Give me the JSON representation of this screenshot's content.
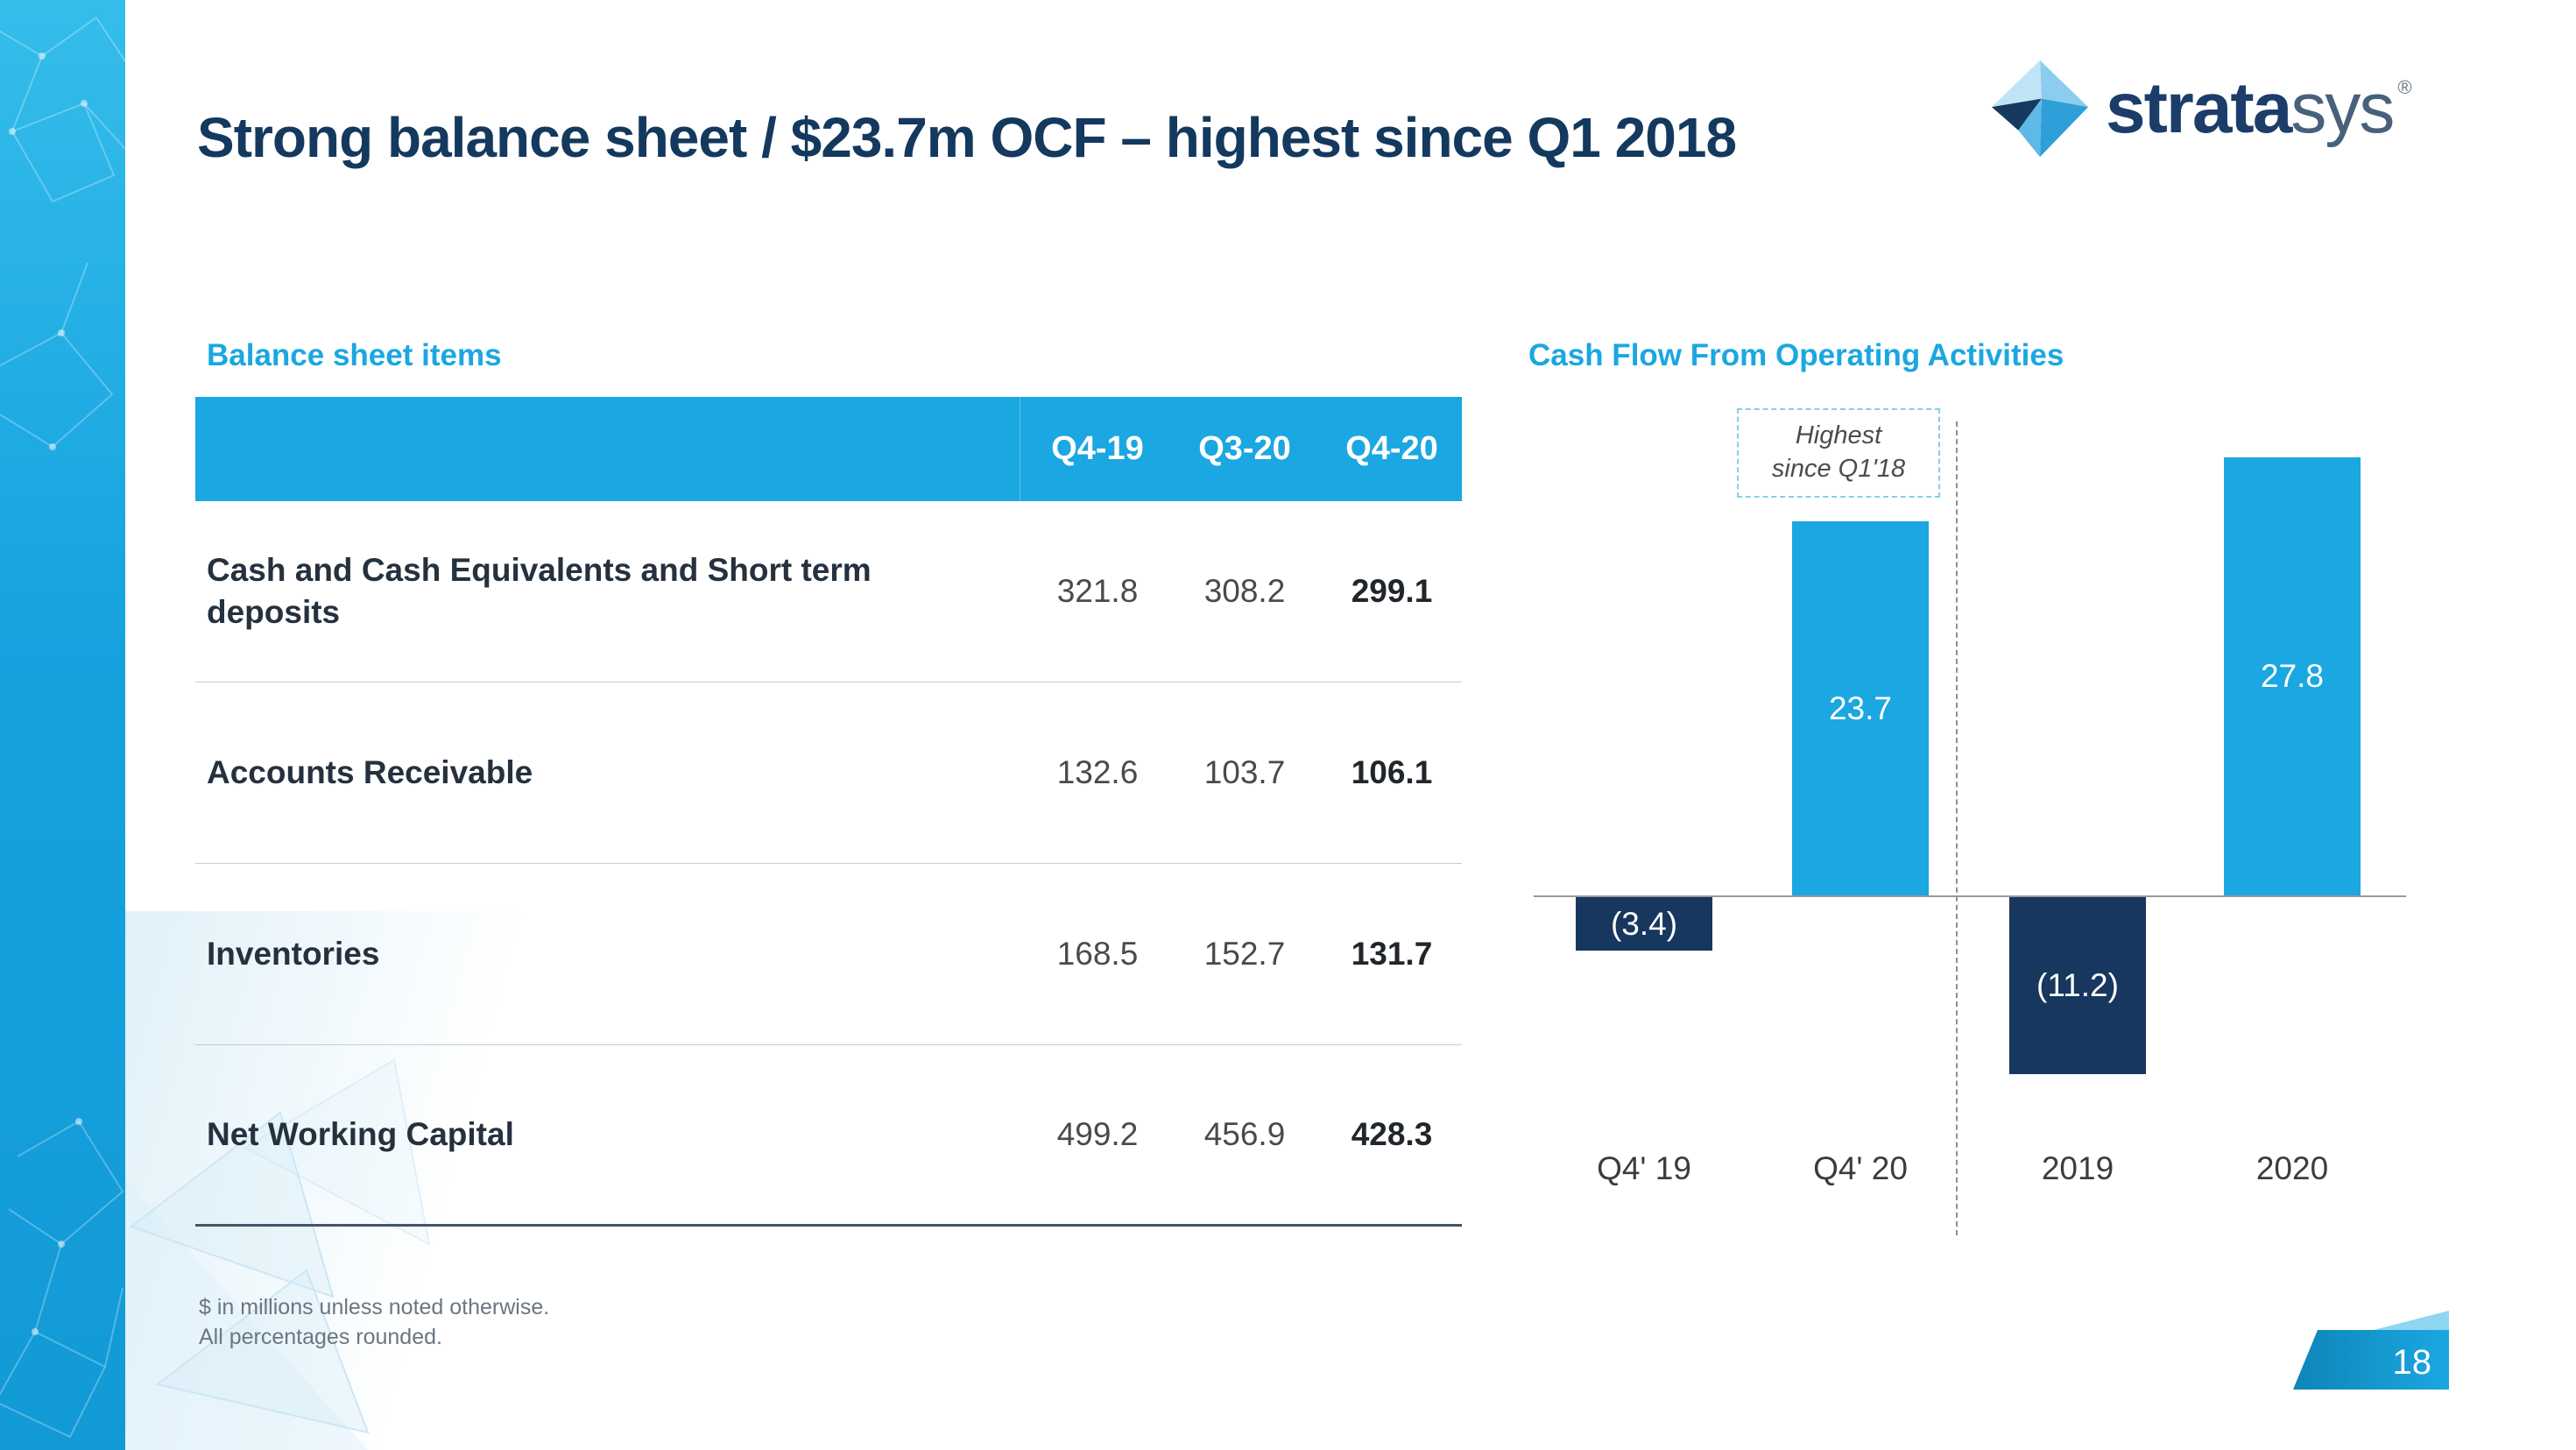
{
  "slide": {
    "title": "Strong balance sheet / $23.7m OCF – highest since Q1 2018",
    "page_number": "18",
    "footnote_line1": "$ in millions unless noted otherwise.",
    "footnote_line2": "All percentages rounded."
  },
  "logo": {
    "brand_bold": "strata",
    "brand_light": "sys",
    "registered_mark": "®"
  },
  "balance_sheet": {
    "section_label": "Balance sheet items",
    "columns": [
      "Q4-19",
      "Q3-20",
      "Q4-20"
    ],
    "rows": [
      {
        "label": "Cash and Cash Equivalents and Short term deposits",
        "values": [
          "321.8",
          "308.2",
          "299.1"
        ]
      },
      {
        "label": "Accounts Receivable",
        "values": [
          "132.6",
          "103.7",
          "106.1"
        ]
      },
      {
        "label": "Inventories",
        "values": [
          "168.5",
          "152.7",
          "131.7"
        ]
      },
      {
        "label": "Net Working Capital",
        "values": [
          "499.2",
          "456.9",
          "428.3"
        ]
      }
    ]
  },
  "cash_flow": {
    "section_label": "Cash Flow From Operating Activities",
    "callout_line1": "Highest",
    "callout_line2": "since Q1'18"
  },
  "chart_data": {
    "type": "bar",
    "title": "Cash Flow From Operating Activities",
    "categories": [
      "Q4' 19",
      "Q4' 20",
      "2019",
      "2020"
    ],
    "values": [
      -3.4,
      23.7,
      -11.2,
      27.8
    ],
    "data_labels": [
      "(3.4)",
      "23.7",
      "(11.2)",
      "27.8"
    ],
    "bar_colors": [
      "#17375E",
      "#1BA7E1",
      "#17375E",
      "#1BA7E1"
    ],
    "annotation": "Highest since Q1'18",
    "xlabel": "",
    "ylabel": "",
    "ylim": [
      -15,
      30
    ],
    "grid": false,
    "legend": "none"
  },
  "colors": {
    "accent_blue": "#1BA7E1",
    "navy": "#17375E",
    "title_navy": "#14395E",
    "table_header_bg": "#1BA7E1",
    "axis_gray": "#9A9A9A"
  }
}
